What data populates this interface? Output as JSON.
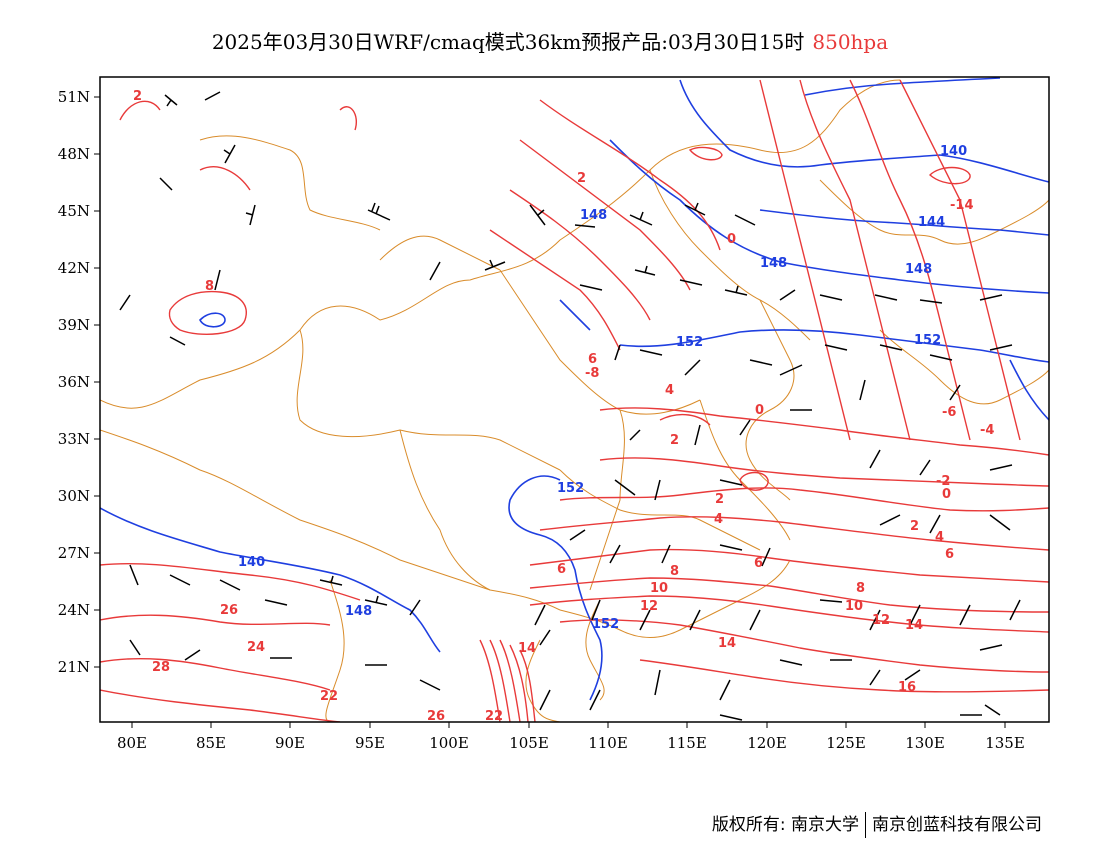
{
  "title": {
    "main": "2025年03月30日WRF/cmaq模式36km预报产品:03月30日15时",
    "level": "850hpa"
  },
  "axes": {
    "lat_labels": [
      "51N",
      "48N",
      "45N",
      "42N",
      "39N",
      "36N",
      "33N",
      "30N",
      "27N",
      "24N",
      "21N"
    ],
    "lon_labels": [
      "80E",
      "85E",
      "90E",
      "95E",
      "100E",
      "105E",
      "110E",
      "115E",
      "120E",
      "125E",
      "130E",
      "135E"
    ]
  },
  "colors": {
    "temperature_contour": "#e83a3a",
    "height_contour": "#1f3fe0",
    "boundary": "#d98c2b",
    "wind_barb": "#000000"
  },
  "contour_labels": {
    "temperature": [
      "2",
      "8",
      "6",
      "4",
      "2",
      "0",
      "2",
      "0",
      "-6",
      "-4",
      "-14",
      "-2",
      "0",
      "2",
      "4",
      "6",
      "8",
      "10",
      "12",
      "14",
      "16",
      "6",
      "8",
      "10",
      "12",
      "14",
      "4",
      "2",
      "26",
      "24",
      "28",
      "22",
      "26",
      "22",
      "14",
      "-8",
      "6"
    ],
    "height": [
      "140",
      "148",
      "144",
      "148",
      "148",
      "152",
      "152",
      "152",
      "140",
      "148",
      "152"
    ]
  },
  "footer": {
    "left": "版权所有: 南京大学",
    "right": "南京创蓝科技有限公司"
  }
}
